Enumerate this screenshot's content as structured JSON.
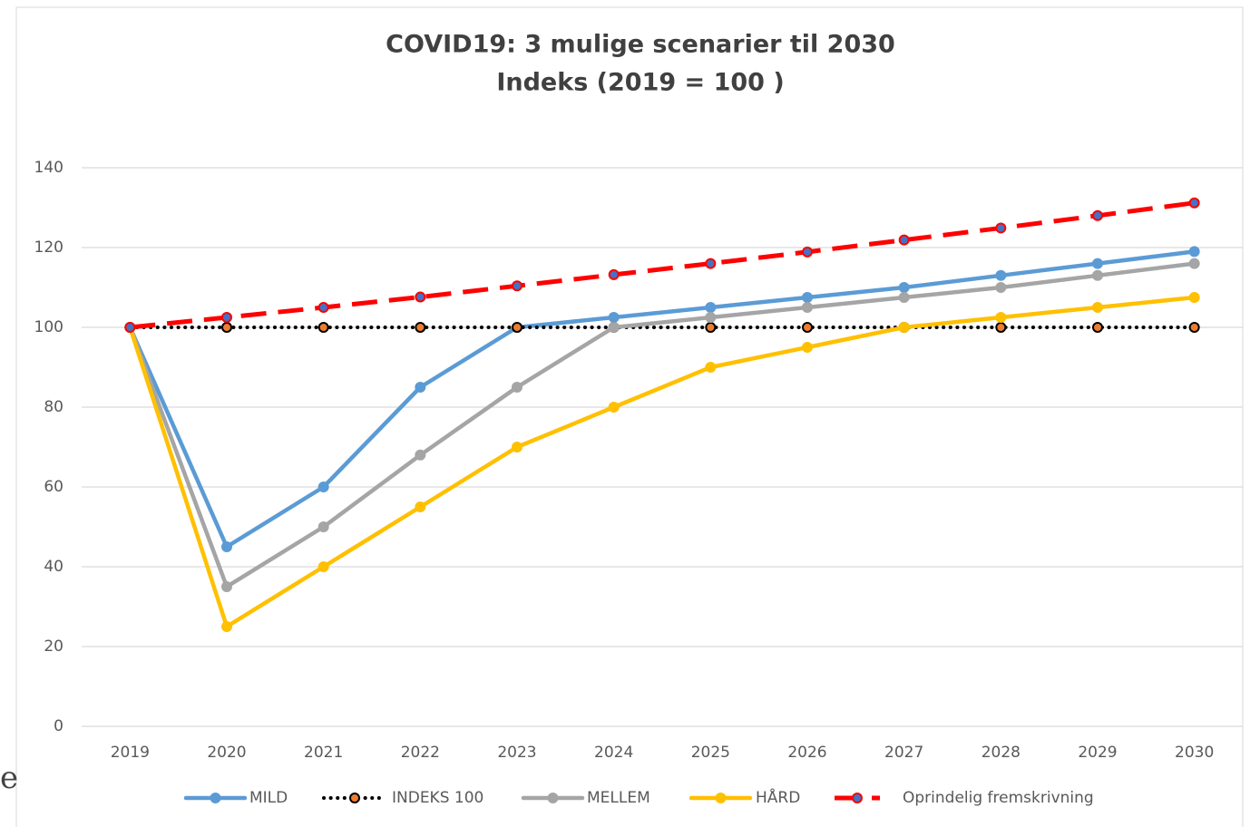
{
  "chart_data": {
    "type": "line",
    "title": "COVID19: 3 mulige scenarier til 2030",
    "subtitle": "Indeks (2019 = 100 )",
    "categories": [
      "2019",
      "2020",
      "2021",
      "2022",
      "2023",
      "2024",
      "2025",
      "2026",
      "2027",
      "2028",
      "2029",
      "2030"
    ],
    "series": [
      {
        "name": "MILD",
        "color": "#5b9bd5",
        "marker_color": "#5b9bd5",
        "line_style": "solid",
        "values": [
          100,
          45,
          60,
          85,
          100,
          102.5,
          105,
          107.5,
          110,
          113,
          116,
          119
        ]
      },
      {
        "name": "INDEKS 100",
        "color": "#000000",
        "marker_color": "#ed7d31",
        "line_style": "dotted",
        "values": [
          100,
          100,
          100,
          100,
          100,
          100,
          100,
          100,
          100,
          100,
          100,
          100
        ]
      },
      {
        "name": "MELLEM",
        "color": "#a5a5a5",
        "marker_color": "#a5a5a5",
        "line_style": "solid",
        "values": [
          100,
          35,
          50,
          68,
          85,
          100,
          102.5,
          105,
          107.5,
          110,
          113,
          116
        ]
      },
      {
        "name": "HÅRD",
        "color": "#ffc000",
        "marker_color": "#ffc000",
        "line_style": "solid",
        "values": [
          100,
          25,
          40,
          55,
          70,
          80,
          90,
          95,
          100,
          102.5,
          105,
          107.5
        ]
      },
      {
        "name": "Oprindelig fremskrivning",
        "color": "#ff0000",
        "marker_color": "#4472c4",
        "line_style": "dashed",
        "values": [
          100,
          102.5,
          105,
          107.6,
          110.4,
          113.2,
          116,
          118.9,
          121.9,
          124.9,
          128,
          131.2
        ]
      }
    ],
    "ylim": [
      0,
      140
    ],
    "yticks": [
      0,
      20,
      40,
      60,
      80,
      100,
      120,
      140
    ],
    "grid": true,
    "legend": "bottom"
  },
  "edge_text": "e"
}
